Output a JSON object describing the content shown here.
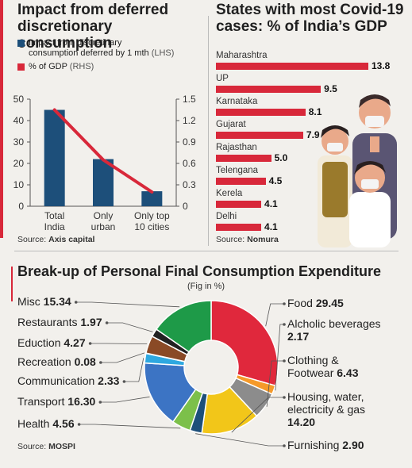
{
  "panel1": {
    "title_line1": "Impact from deferred",
    "title_line2": "discretionary consumption",
    "legend": [
      {
        "label_line1": "Impact from discretinary",
        "label_line2": "consumption deferred by 1 mth",
        "label_suffix": "(LHS)",
        "color": "#1d4f7a"
      },
      {
        "label_line1": "% of GDP",
        "label_line2": "",
        "label_suffix": "(RHS)",
        "color": "#d8283a"
      }
    ],
    "source_prefix": "Source:",
    "source_name": "Axis capital"
  },
  "panel2": {
    "title_line1": "States with most Covid-19",
    "title_line2": "cases: % of India’s GDP",
    "source_prefix": "Source:",
    "source_name": "Nomura"
  },
  "panel3": {
    "title": "Break-up of Personal Final Consumption Expenditure",
    "subtitle": "(Fig in %)",
    "source_prefix": "Source:",
    "source_name": "MOSPI"
  },
  "chart_data": [
    {
      "type": "bar",
      "categories": [
        "Total India",
        "Only urban",
        "Only top 10 cities"
      ],
      "category_lines": [
        [
          "Total",
          "India"
        ],
        [
          "Only",
          "urban"
        ],
        [
          "Only top",
          "10 cities"
        ]
      ],
      "series": [
        {
          "name": "Impact from discretinary consumption deferred by 1 mth (LHS)",
          "type": "bar",
          "axis": "left",
          "values": [
            45,
            22,
            7
          ],
          "color": "#1d4f7a"
        },
        {
          "name": "% of GDP (RHS)",
          "type": "line",
          "axis": "right",
          "values": [
            1.35,
            0.65,
            0.2
          ],
          "color": "#d8283a"
        }
      ],
      "left_axis": {
        "ylim": [
          0,
          50
        ],
        "ticks": [
          "0",
          "10",
          "20",
          "30",
          "40",
          "50"
        ]
      },
      "right_axis": {
        "ylim": [
          0,
          1.5
        ],
        "ticks": [
          "0",
          "0.3",
          "0.6",
          "0.9",
          "1.2",
          "1.5"
        ]
      },
      "grid": false
    },
    {
      "type": "bar",
      "orientation": "horizontal",
      "categories": [
        "Maharashtra",
        "UP",
        "Karnataka",
        "Gujarat",
        "Rajasthan",
        "Telengana",
        "Kerela",
        "Delhi"
      ],
      "values": [
        13.8,
        9.5,
        8.1,
        7.9,
        5.0,
        4.5,
        4.1,
        4.1
      ],
      "value_labels": [
        "13.8",
        "9.5",
        "8.1",
        "7.9",
        "5.0",
        "4.5",
        "4.1",
        "4.1"
      ],
      "color": "#d8283a",
      "xlim": [
        0,
        13.8
      ]
    },
    {
      "type": "pie",
      "style": "donut",
      "slices": [
        {
          "label": "Food",
          "value": 29.45,
          "value_text": "29.45",
          "color": "#e0283c",
          "side": "right"
        },
        {
          "label": "Alcholic beverages",
          "value": 2.17,
          "value_text": "2.17",
          "color": "#f59a2a",
          "side": "right"
        },
        {
          "label": "Clothing & Footwear",
          "value": 6.43,
          "value_text": "6.43",
          "color": "#8c8c8c",
          "side": "right"
        },
        {
          "label": "Housing, water, electricity & gas",
          "value": 14.2,
          "value_text": "14.20",
          "color": "#f2c619",
          "side": "right"
        },
        {
          "label": "Furnishing",
          "value": 2.9,
          "value_text": "2.90",
          "color": "#1d4f7a",
          "side": "right"
        },
        {
          "label": "Health",
          "value": 4.56,
          "value_text": "4.56",
          "color": "#7cc04a",
          "side": "left"
        },
        {
          "label": "Transport",
          "value": 16.3,
          "value_text": "16.30",
          "color": "#3c74c4",
          "side": "left"
        },
        {
          "label": "Communication",
          "value": 2.33,
          "value_text": "2.33",
          "color": "#2ea8e0",
          "side": "left"
        },
        {
          "label": "Recreation",
          "value": 0.08,
          "value_text": "0.08",
          "color": "#111111",
          "side": "left"
        },
        {
          "label": "Eduction",
          "value": 4.27,
          "value_text": "4.27",
          "color": "#8a4a26",
          "side": "left"
        },
        {
          "label": "Restaurants",
          "value": 1.97,
          "value_text": "1.97",
          "color": "#222222",
          "side": "left"
        },
        {
          "label": "Misc",
          "value": 15.34,
          "value_text": "15.34",
          "color": "#1e9a48",
          "side": "left"
        }
      ]
    }
  ]
}
